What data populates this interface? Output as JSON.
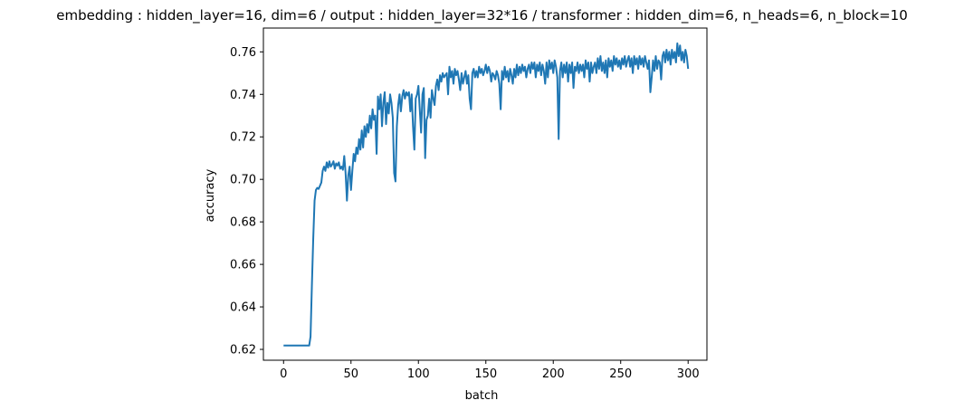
{
  "chart_data": {
    "type": "line",
    "title": "embedding : hidden_layer=16, dim=6 / output : hidden_layer=32*16 / transformer : hidden_dim=6, n_heads=6, n_block=10",
    "xlabel": "batch",
    "ylabel": "accuracy",
    "xlim": [
      -14.95,
      313.95
    ],
    "ylim": [
      0.6149,
      0.7712
    ],
    "xticks": [
      0,
      50,
      100,
      150,
      200,
      250,
      300
    ],
    "xtick_labels": [
      "0",
      "50",
      "100",
      "150",
      "200",
      "250",
      "300"
    ],
    "yticks": [
      0.62,
      0.64,
      0.66,
      0.68,
      0.7,
      0.72,
      0.74,
      0.76
    ],
    "ytick_labels": [
      "0.62",
      "0.64",
      "0.66",
      "0.68",
      "0.70",
      "0.72",
      "0.74",
      "0.76"
    ],
    "grid": false,
    "series": [
      {
        "color": "#1f77b4",
        "points": [
          [
            0,
            0.6218
          ],
          [
            5,
            0.6218
          ],
          [
            10,
            0.6218
          ],
          [
            15,
            0.6218
          ],
          [
            19,
            0.6218
          ],
          [
            20,
            0.626
          ],
          [
            21,
            0.65
          ],
          [
            22,
            0.672
          ],
          [
            23,
            0.69
          ],
          [
            24,
            0.695
          ],
          [
            25,
            0.696
          ],
          [
            26,
            0.6955
          ],
          [
            27,
            0.697
          ],
          [
            28,
            0.6985
          ],
          [
            29,
            0.704
          ],
          [
            30,
            0.706
          ],
          [
            31,
            0.704
          ],
          [
            32,
            0.708
          ],
          [
            33,
            0.7055
          ],
          [
            34,
            0.7085
          ],
          [
            35,
            0.706
          ],
          [
            36,
            0.707
          ],
          [
            37,
            0.7085
          ],
          [
            38,
            0.705
          ],
          [
            39,
            0.7075
          ],
          [
            40,
            0.7065
          ],
          [
            41,
            0.708
          ],
          [
            42,
            0.705
          ],
          [
            43,
            0.706
          ],
          [
            44,
            0.7045
          ],
          [
            45,
            0.711
          ],
          [
            46,
            0.703
          ],
          [
            47,
            0.69
          ],
          [
            48,
            0.702
          ],
          [
            49,
            0.706
          ],
          [
            50,
            0.695
          ],
          [
            51,
            0.704
          ],
          [
            52,
            0.712
          ],
          [
            53,
            0.7085
          ],
          [
            54,
            0.715
          ],
          [
            55,
            0.712
          ],
          [
            56,
            0.719
          ],
          [
            57,
            0.714
          ],
          [
            58,
            0.723
          ],
          [
            59,
            0.715
          ],
          [
            60,
            0.725
          ],
          [
            61,
            0.72
          ],
          [
            62,
            0.726
          ],
          [
            63,
            0.722
          ],
          [
            64,
            0.73
          ],
          [
            65,
            0.724
          ],
          [
            66,
            0.733
          ],
          [
            67,
            0.728
          ],
          [
            68,
            0.73
          ],
          [
            69,
            0.712
          ],
          [
            70,
            0.739
          ],
          [
            71,
            0.733
          ],
          [
            72,
            0.74
          ],
          [
            73,
            0.725
          ],
          [
            74,
            0.736
          ],
          [
            75,
            0.741
          ],
          [
            76,
            0.726
          ],
          [
            77,
            0.736
          ],
          [
            78,
            0.731
          ],
          [
            79,
            0.74
          ],
          [
            80,
            0.736
          ],
          [
            81,
            0.729
          ],
          [
            82,
            0.703
          ],
          [
            83,
            0.699
          ],
          [
            84,
            0.725
          ],
          [
            85,
            0.735
          ],
          [
            86,
            0.74
          ],
          [
            87,
            0.732
          ],
          [
            88,
            0.739
          ],
          [
            89,
            0.742
          ],
          [
            90,
            0.738
          ],
          [
            91,
            0.741
          ],
          [
            92,
            0.7395
          ],
          [
            93,
            0.741
          ],
          [
            94,
            0.732
          ],
          [
            95,
            0.74
          ],
          [
            96,
            0.725
          ],
          [
            97,
            0.714
          ],
          [
            98,
            0.738
          ],
          [
            99,
            0.74
          ],
          [
            100,
            0.744
          ],
          [
            101,
            0.733
          ],
          [
            102,
            0.722
          ],
          [
            103,
            0.74
          ],
          [
            104,
            0.743
          ],
          [
            105,
            0.71
          ],
          [
            106,
            0.728
          ],
          [
            107,
            0.73
          ],
          [
            108,
            0.738
          ],
          [
            109,
            0.729
          ],
          [
            110,
            0.742
          ],
          [
            111,
            0.738
          ],
          [
            112,
            0.735
          ],
          [
            113,
            0.744
          ],
          [
            114,
            0.747
          ],
          [
            115,
            0.742
          ],
          [
            116,
            0.749
          ],
          [
            117,
            0.746
          ],
          [
            118,
            0.75
          ],
          [
            119,
            0.748
          ],
          [
            120,
            0.749
          ],
          [
            121,
            0.75
          ],
          [
            122,
            0.74
          ],
          [
            123,
            0.753
          ],
          [
            124,
            0.748
          ],
          [
            125,
            0.751
          ],
          [
            126,
            0.745
          ],
          [
            127,
            0.752
          ],
          [
            128,
            0.749
          ],
          [
            129,
            0.751
          ],
          [
            130,
            0.747
          ],
          [
            131,
            0.742
          ],
          [
            132,
            0.75
          ],
          [
            133,
            0.745
          ],
          [
            134,
            0.748
          ],
          [
            135,
            0.751
          ],
          [
            136,
            0.745
          ],
          [
            137,
            0.749
          ],
          [
            138,
            0.738
          ],
          [
            139,
            0.733
          ],
          [
            140,
            0.75
          ],
          [
            141,
            0.752
          ],
          [
            142,
            0.748
          ],
          [
            143,
            0.751
          ],
          [
            144,
            0.748
          ],
          [
            145,
            0.753
          ],
          [
            146,
            0.75
          ],
          [
            147,
            0.752
          ],
          [
            148,
            0.749
          ],
          [
            149,
            0.751
          ],
          [
            150,
            0.754
          ],
          [
            151,
            0.75
          ],
          [
            152,
            0.753
          ],
          [
            153,
            0.751
          ],
          [
            154,
            0.746
          ],
          [
            155,
            0.75
          ],
          [
            156,
            0.749
          ],
          [
            157,
            0.747
          ],
          [
            158,
            0.751
          ],
          [
            159,
            0.749
          ],
          [
            160,
            0.745
          ],
          [
            161,
            0.733
          ],
          [
            162,
            0.751
          ],
          [
            163,
            0.747
          ],
          [
            164,
            0.753
          ],
          [
            165,
            0.748
          ],
          [
            166,
            0.751
          ],
          [
            167,
            0.746
          ],
          [
            168,
            0.752
          ],
          [
            169,
            0.749
          ],
          [
            170,
            0.745
          ],
          [
            171,
            0.752
          ],
          [
            172,
            0.748
          ],
          [
            173,
            0.754
          ],
          [
            174,
            0.749
          ],
          [
            175,
            0.753
          ],
          [
            176,
            0.75
          ],
          [
            177,
            0.754
          ],
          [
            178,
            0.751
          ],
          [
            179,
            0.753
          ],
          [
            180,
            0.748
          ],
          [
            181,
            0.752
          ],
          [
            182,
            0.754
          ],
          [
            183,
            0.75
          ],
          [
            184,
            0.755
          ],
          [
            185,
            0.752
          ],
          [
            186,
            0.755
          ],
          [
            187,
            0.748
          ],
          [
            188,
            0.754
          ],
          [
            189,
            0.751
          ],
          [
            190,
            0.755
          ],
          [
            191,
            0.749
          ],
          [
            192,
            0.754
          ],
          [
            193,
            0.751
          ],
          [
            194,
            0.745
          ],
          [
            195,
            0.755
          ],
          [
            196,
            0.748
          ],
          [
            197,
            0.756
          ],
          [
            198,
            0.752
          ],
          [
            199,
            0.755
          ],
          [
            200,
            0.75
          ],
          [
            201,
            0.756
          ],
          [
            202,
            0.753
          ],
          [
            203,
            0.748
          ],
          [
            204,
            0.719
          ],
          [
            205,
            0.751
          ],
          [
            206,
            0.755
          ],
          [
            207,
            0.748
          ],
          [
            208,
            0.754
          ],
          [
            209,
            0.75
          ],
          [
            210,
            0.755
          ],
          [
            211,
            0.746
          ],
          [
            212,
            0.754
          ],
          [
            213,
            0.75
          ],
          [
            214,
            0.755
          ],
          [
            215,
            0.743
          ],
          [
            216,
            0.753
          ],
          [
            217,
            0.751
          ],
          [
            218,
            0.755
          ],
          [
            219,
            0.75
          ],
          [
            220,
            0.754
          ],
          [
            221,
            0.751
          ],
          [
            222,
            0.754
          ],
          [
            223,
            0.748
          ],
          [
            224,
            0.756
          ],
          [
            225,
            0.752
          ],
          [
            226,
            0.755
          ],
          [
            227,
            0.746
          ],
          [
            228,
            0.755
          ],
          [
            229,
            0.75
          ],
          [
            230,
            0.753
          ],
          [
            231,
            0.755
          ],
          [
            232,
            0.75
          ],
          [
            233,
            0.757
          ],
          [
            234,
            0.752
          ],
          [
            235,
            0.758
          ],
          [
            236,
            0.751
          ],
          [
            237,
            0.755
          ],
          [
            238,
            0.75
          ],
          [
            239,
            0.756
          ],
          [
            240,
            0.748
          ],
          [
            241,
            0.757
          ],
          [
            242,
            0.753
          ],
          [
            243,
            0.756
          ],
          [
            244,
            0.751
          ],
          [
            245,
            0.758
          ],
          [
            246,
            0.754
          ],
          [
            247,
            0.757
          ],
          [
            248,
            0.753
          ],
          [
            249,
            0.756
          ],
          [
            250,
            0.752
          ],
          [
            251,
            0.757
          ],
          [
            252,
            0.754
          ],
          [
            253,
            0.758
          ],
          [
            254,
            0.753
          ],
          [
            255,
            0.756
          ],
          [
            256,
            0.758
          ],
          [
            257,
            0.753
          ],
          [
            258,
            0.757
          ],
          [
            259,
            0.75
          ],
          [
            260,
            0.758
          ],
          [
            261,
            0.754
          ],
          [
            262,
            0.757
          ],
          [
            263,
            0.752
          ],
          [
            264,
            0.758
          ],
          [
            265,
            0.754
          ],
          [
            266,
            0.757
          ],
          [
            267,
            0.753
          ],
          [
            268,
            0.758
          ],
          [
            269,
            0.755
          ],
          [
            270,
            0.752
          ],
          [
            271,
            0.756
          ],
          [
            272,
            0.741
          ],
          [
            273,
            0.748
          ],
          [
            274,
            0.756
          ],
          [
            275,
            0.751
          ],
          [
            276,
            0.758
          ],
          [
            277,
            0.752
          ],
          [
            278,
            0.756
          ],
          [
            279,
            0.755
          ],
          [
            280,
            0.747
          ],
          [
            281,
            0.758
          ],
          [
            282,
            0.76
          ],
          [
            283,
            0.755
          ],
          [
            284,
            0.761
          ],
          [
            285,
            0.756
          ],
          [
            286,
            0.76
          ],
          [
            287,
            0.754
          ],
          [
            288,
            0.761
          ],
          [
            289,
            0.757
          ],
          [
            290,
            0.76
          ],
          [
            291,
            0.755
          ],
          [
            292,
            0.764
          ],
          [
            293,
            0.758
          ],
          [
            294,
            0.763
          ],
          [
            295,
            0.756
          ],
          [
            296,
            0.76
          ],
          [
            297,
            0.755
          ],
          [
            298,
            0.761
          ],
          [
            299,
            0.758
          ],
          [
            300,
            0.752
          ]
        ]
      }
    ]
  }
}
